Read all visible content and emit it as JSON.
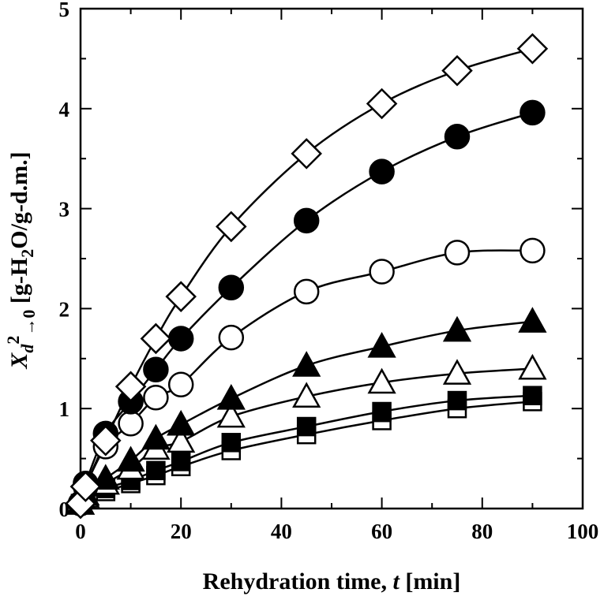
{
  "chart_data": {
    "type": "scatter",
    "title": "",
    "xlabel": "Rehydration time, t [min]",
    "xlabel_parts": {
      "prefix": "Rehydration time, ",
      "var": "t",
      "suffix": " [min]"
    },
    "ylabel": "X_d^2→0 [g-H2O/g-d.m.]",
    "ylabel_parts": {
      "x": "X",
      "d": "d",
      "sup": "2",
      "arrow": "→0",
      "unit_a": " [g-H",
      "unit_sub": "2",
      "unit_b": "O/g-d.m.]"
    },
    "xlim": [
      0,
      100
    ],
    "ylim": [
      0,
      5
    ],
    "xticks": [
      0,
      20,
      40,
      60,
      80,
      100
    ],
    "yticks": [
      0,
      1,
      2,
      3,
      4,
      5
    ],
    "xtick_labels": [
      "0",
      "20",
      "40",
      "60",
      "80",
      "100"
    ],
    "ytick_labels": [
      "0",
      "1",
      "2",
      "3",
      "4",
      "5"
    ],
    "grid": false,
    "legend": "none",
    "x": [
      0,
      1,
      5,
      10,
      15,
      20,
      30,
      45,
      60,
      75,
      90
    ],
    "series": [
      {
        "name": "open-diamond",
        "marker": "diamond",
        "filled": false,
        "values": [
          0.05,
          0.22,
          0.68,
          1.22,
          1.7,
          2.12,
          2.82,
          3.55,
          4.05,
          4.38,
          4.6
        ]
      },
      {
        "name": "filled-circle",
        "marker": "circle",
        "filled": true,
        "values": [
          0.05,
          0.25,
          0.75,
          1.07,
          1.39,
          1.7,
          2.21,
          2.88,
          3.37,
          3.72,
          3.96
        ]
      },
      {
        "name": "open-circle",
        "marker": "circle",
        "filled": false,
        "values": [
          0.05,
          0.22,
          0.62,
          0.85,
          1.11,
          1.24,
          1.71,
          2.17,
          2.37,
          2.56,
          2.58
        ]
      },
      {
        "name": "filled-triangle",
        "marker": "triangle",
        "filled": true,
        "values": [
          0.05,
          0.14,
          0.3,
          0.48,
          0.7,
          0.84,
          1.1,
          1.43,
          1.62,
          1.78,
          1.87
        ]
      },
      {
        "name": "open-triangle",
        "marker": "triangle",
        "filled": false,
        "values": [
          0.05,
          0.12,
          0.25,
          0.4,
          0.6,
          0.67,
          0.92,
          1.12,
          1.26,
          1.35,
          1.4
        ]
      },
      {
        "name": "filled-square",
        "marker": "square",
        "filled": true,
        "values": [
          0.05,
          0.1,
          0.2,
          0.28,
          0.38,
          0.47,
          0.66,
          0.82,
          0.97,
          1.08,
          1.13
        ]
      },
      {
        "name": "half-square",
        "marker": "square-bar",
        "filled": false,
        "values": [
          0.05,
          0.09,
          0.17,
          0.25,
          0.33,
          0.42,
          0.58,
          0.74,
          0.88,
          1.0,
          1.07
        ]
      }
    ]
  }
}
